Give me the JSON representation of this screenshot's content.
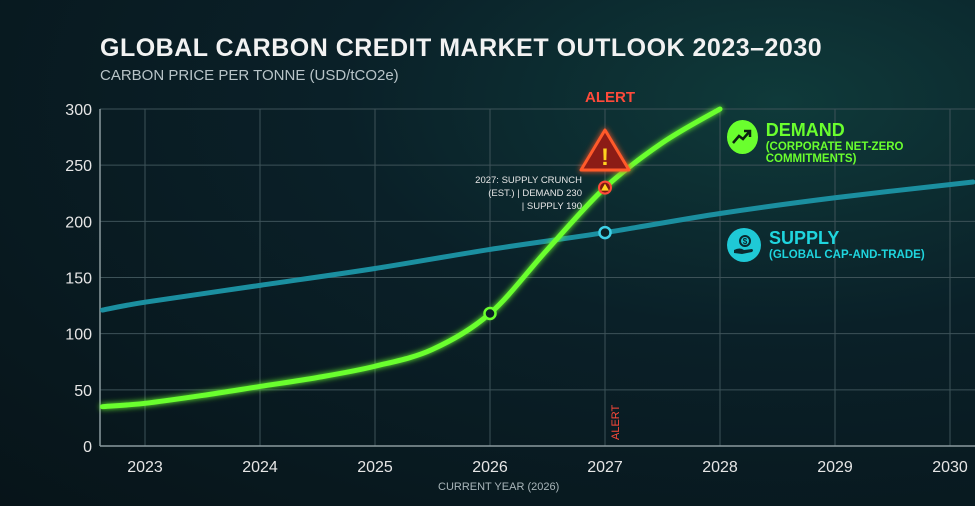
{
  "chart_data": {
    "type": "line",
    "title": "GLOBAL CARBON CREDIT MARKET OUTLOOK 2023–2030",
    "subtitle": "CARBON PRICE PER TONNE (USD/tCO2e)",
    "xlabel": "CURRENT YEAR (2026)",
    "ylabel": "CARBON PRICE PER TONNE (USD/tCO2e)",
    "xlim": [
      2022.63,
      2030.2
    ],
    "ylim": [
      0,
      300
    ],
    "x_ticks": [
      "2023",
      "2024",
      "2025",
      "2026",
      "2027",
      "2028",
      "2029",
      "2030"
    ],
    "y_ticks": [
      "0",
      "50",
      "100",
      "150",
      "200",
      "250",
      "300"
    ],
    "grid": true,
    "series": [
      {
        "name": "DEMAND",
        "subtitle": "(CORPORATE NET-ZERO COMMITMENTS)",
        "color": "#6aff2e",
        "x": [
          2022.63,
          2023,
          2023.5,
          2024,
          2024.5,
          2025,
          2025.5,
          2026,
          2026.5,
          2027,
          2027.5,
          2028
        ],
        "values": [
          35,
          38,
          45,
          53,
          61,
          71,
          86,
          118,
          175,
          230,
          270,
          300
        ],
        "marked_points": [
          {
            "x": 2026,
            "y": 118
          },
          {
            "x": 2027,
            "y": 230
          }
        ]
      },
      {
        "name": "SUPPLY",
        "subtitle": "(GLOBAL CAP-AND-TRADE)",
        "color": "#1b8fa0",
        "x": [
          2022.63,
          2023,
          2024,
          2025,
          2026,
          2027,
          2028,
          2029,
          2030.2
        ],
        "values": [
          121,
          128,
          143,
          158,
          175,
          190,
          207,
          221,
          235
        ],
        "marked_points": [
          {
            "x": 2027,
            "y": 190
          }
        ]
      }
    ],
    "annotations": {
      "alert_label": "ALERT",
      "alert_vertical_label": "ALERT",
      "alert_year": 2027,
      "crunch_lines": [
        "2027: SUPPLY CRUNCH",
        "(EST.) | DEMAND 230",
        "| SUPPLY 190"
      ]
    },
    "legend_placement": "right"
  }
}
